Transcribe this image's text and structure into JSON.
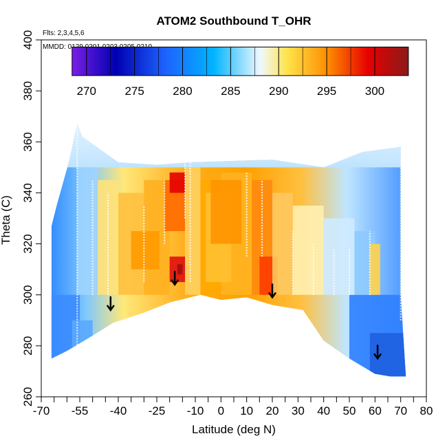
{
  "chart_data": {
    "type": "heatmap",
    "title": "ATOM2 Southbound T_OHR",
    "subtitle_flights": "Flts: 2,3,4,5,6",
    "subtitle_dates": "MMDD: 0129,0201,0203,0205,0210",
    "xlabel": "Latitude (deg N)",
    "ylabel": "Theta (C)",
    "xlim": [
      -70,
      80
    ],
    "ylim": [
      260,
      400
    ],
    "x_ticks": [
      -70,
      -55,
      -40,
      -25,
      -10,
      0,
      10,
      20,
      30,
      40,
      50,
      60,
      70,
      80
    ],
    "x_minor_ticks": [
      -65,
      -60,
      -50,
      -45,
      -35,
      -30,
      -20,
      -15,
      -5,
      5,
      15,
      25,
      35,
      45,
      55,
      65,
      75
    ],
    "y_ticks": [
      260,
      280,
      300,
      320,
      340,
      360,
      380,
      400
    ],
    "colorbar": {
      "range": [
        268.5,
        303.5
      ],
      "ticks": [
        270,
        275,
        280,
        285,
        290,
        295,
        300
      ],
      "colors": [
        "#7a1fe6",
        "#0000b0",
        "#1e64ff",
        "#00b4ff",
        "#f0f8ff",
        "#ffe34a",
        "#ff8c00",
        "#e60000",
        "#8b1a1a"
      ]
    },
    "annotations": [
      {
        "type": "arrow-down",
        "lat": -43,
        "theta": 294
      },
      {
        "type": "arrow-down",
        "lat": -18,
        "theta": 304
      },
      {
        "type": "arrow-down",
        "lat": 20,
        "theta": 299
      },
      {
        "type": "arrow-down",
        "lat": 61,
        "theta": 275
      }
    ]
  }
}
